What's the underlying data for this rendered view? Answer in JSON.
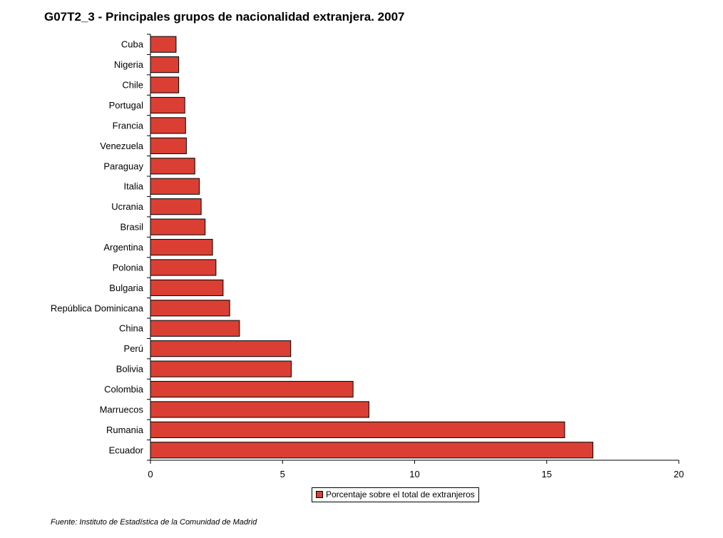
{
  "chart_data": {
    "type": "bar",
    "orientation": "horizontal",
    "title": "G07T2_3 - Principales grupos de nacionalidad extranjera. 2007",
    "categories": [
      "Cuba",
      "Nigeria",
      "Chile",
      "Portugal",
      "Francia",
      "Venezuela",
      "Paraguay",
      "Italia",
      "Ucrania",
      "Brasil",
      "Argentina",
      "Polonia",
      "Bulgaria",
      "República Dominicana",
      "China",
      "Perú",
      "Bolivia",
      "Colombia",
      "Marruecos",
      "Rumania",
      "Ecuador"
    ],
    "series": [
      {
        "name": "Porcentaje sobre el total de extranjeros",
        "color": "#DB3F33",
        "values": [
          0.97,
          1.07,
          1.07,
          1.3,
          1.33,
          1.36,
          1.68,
          1.85,
          1.92,
          2.07,
          2.35,
          2.48,
          2.75,
          3.0,
          3.37,
          5.31,
          5.33,
          7.67,
          8.27,
          15.68,
          16.75
        ]
      }
    ],
    "xlim": [
      0,
      20
    ],
    "xticks": [
      0,
      5,
      10,
      15,
      20
    ],
    "grid": false,
    "legend_position": "bottom"
  },
  "legend": {
    "label": "Porcentaje sobre el total de extranjeros"
  },
  "source": "Fuente: Instituto de Estadística de la Comunidad de Madrid"
}
